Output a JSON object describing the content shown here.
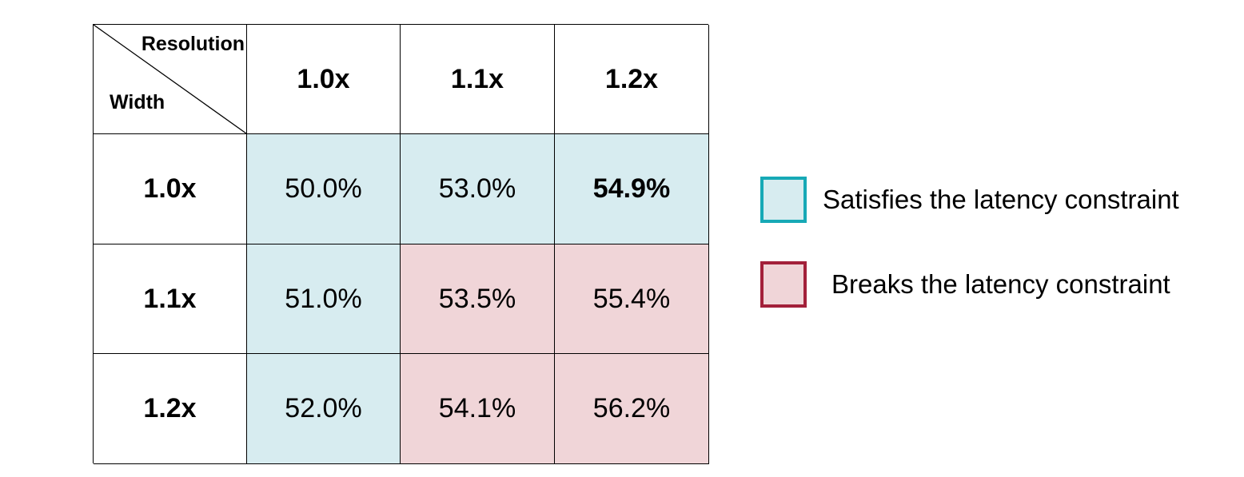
{
  "chart_data": {
    "type": "table",
    "corner": {
      "column_axis_label": "Resolution",
      "row_axis_label": "Width"
    },
    "columns": [
      "1.0x",
      "1.1x",
      "1.2x"
    ],
    "rows": [
      {
        "label": "1.0x",
        "cells": [
          {
            "text": "50.0%",
            "value": 50.0,
            "status": "satisfies",
            "bold": false
          },
          {
            "text": "53.0%",
            "value": 53.0,
            "status": "satisfies",
            "bold": false
          },
          {
            "text": "54.9%",
            "value": 54.9,
            "status": "satisfies",
            "bold": true
          }
        ]
      },
      {
        "label": "1.1x",
        "cells": [
          {
            "text": "51.0%",
            "value": 51.0,
            "status": "satisfies",
            "bold": false
          },
          {
            "text": "53.5%",
            "value": 53.5,
            "status": "breaks",
            "bold": false
          },
          {
            "text": "55.4%",
            "value": 55.4,
            "status": "breaks",
            "bold": false
          }
        ]
      },
      {
        "label": "1.2x",
        "cells": [
          {
            "text": "52.0%",
            "value": 52.0,
            "status": "satisfies",
            "bold": false
          },
          {
            "text": "54.1%",
            "value": 54.1,
            "status": "breaks",
            "bold": false
          },
          {
            "text": "56.2%",
            "value": 56.2,
            "status": "breaks",
            "bold": false
          }
        ]
      }
    ],
    "legend": [
      {
        "status": "satisfies",
        "label": "Satisfies the latency constraint",
        "fill": "#d7ecf0",
        "border": "#17a9b6"
      },
      {
        "status": "breaks",
        "label": "Breaks the latency constraint",
        "fill": "#f0d5d8",
        "border": "#a3203a"
      }
    ],
    "legend_position": "right"
  }
}
